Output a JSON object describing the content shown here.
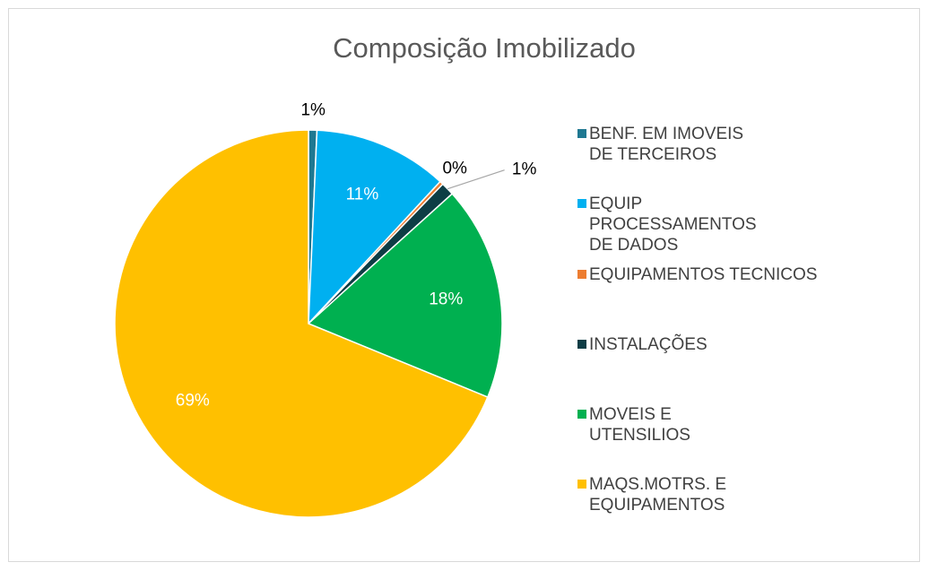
{
  "chart_data": {
    "type": "pie",
    "title": "Composição Imobilizado",
    "categories": [
      "BENF. EM IMOVEIS DE TERCEIROS",
      "EQUIP PROCESSAMENTOS DE DADOS",
      "EQUIPAMENTOS TECNICOS",
      "INSTALAÇÕES",
      "MOVEIS E UTENSILIOS",
      "MAQS.MOTRS. E EQUIPAMENTOS"
    ],
    "values": [
      0.7,
      11.2,
      0.3,
      1.1,
      17.9,
      68.8
    ],
    "value_labels": [
      "1%",
      "11%",
      "0%",
      "1%",
      "18%",
      "69%"
    ],
    "colors": [
      "#1f7891",
      "#00b0f0",
      "#ed7d31",
      "#0d3d45",
      "#00b050",
      "#ffc000"
    ],
    "legend": "right"
  }
}
